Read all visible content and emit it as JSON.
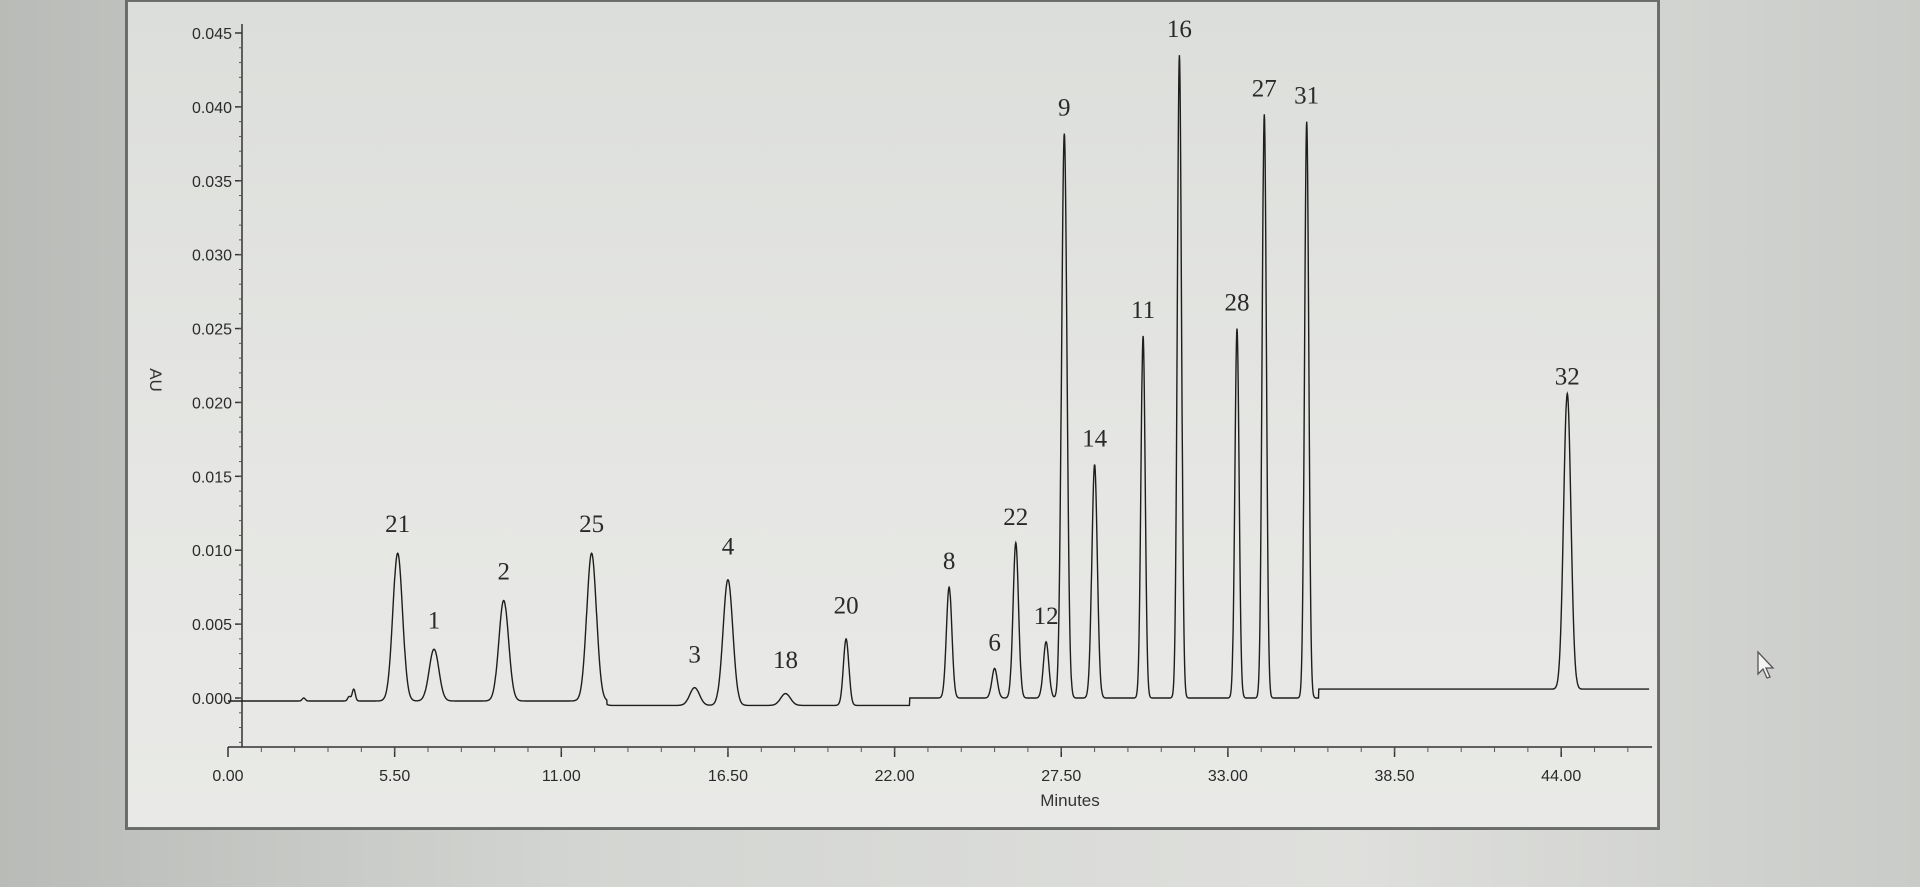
{
  "chart_data": {
    "type": "line",
    "title": "",
    "xlabel": "Minutes",
    "ylabel": "AU",
    "xlim": [
      0,
      47
    ],
    "ylim": [
      -0.0035,
      0.045
    ],
    "x_ticks": [
      "0.00",
      "5.50",
      "11.00",
      "16.50",
      "22.00",
      "27.50",
      "33.00",
      "38.50",
      "44.00"
    ],
    "x_tick_values": [
      0,
      5.5,
      11,
      16.5,
      22,
      27.5,
      33,
      38.5,
      44
    ],
    "y_ticks": [
      "0.000",
      "0.005",
      "0.010",
      "0.015",
      "0.020",
      "0.025",
      "0.030",
      "0.035",
      "0.040",
      "0.045"
    ],
    "y_tick_values": [
      0,
      0.005,
      0.01,
      0.015,
      0.02,
      0.025,
      0.03,
      0.035,
      0.04,
      0.045
    ],
    "grid": false,
    "line_color": "#1e1e1e",
    "peaks": [
      {
        "label": "21",
        "time": 5.6,
        "height": 0.01
      },
      {
        "label": "1",
        "time": 6.8,
        "height": 0.0035
      },
      {
        "label": "2",
        "time": 9.1,
        "height": 0.0068
      },
      {
        "label": "25",
        "time": 12.0,
        "height": 0.01
      },
      {
        "label": "3",
        "time": 15.4,
        "height": 0.0012
      },
      {
        "label": "4",
        "time": 16.5,
        "height": 0.0085
      },
      {
        "label": "18",
        "time": 18.4,
        "height": 0.0008
      },
      {
        "label": "20",
        "time": 20.4,
        "height": 0.0045
      },
      {
        "label": "8",
        "time": 23.8,
        "height": 0.0075
      },
      {
        "label": "6",
        "time": 25.3,
        "height": 0.002
      },
      {
        "label": "22",
        "time": 26.0,
        "height": 0.0105
      },
      {
        "label": "12",
        "time": 27.0,
        "height": 0.0038
      },
      {
        "label": "9",
        "time": 27.6,
        "height": 0.0382
      },
      {
        "label": "14",
        "time": 28.6,
        "height": 0.0158
      },
      {
        "label": "11",
        "time": 30.2,
        "height": 0.0245
      },
      {
        "label": "16",
        "time": 31.4,
        "height": 0.0435
      },
      {
        "label": "28",
        "time": 33.3,
        "height": 0.025
      },
      {
        "label": "27",
        "time": 34.2,
        "height": 0.0395
      },
      {
        "label": "31",
        "time": 35.6,
        "height": 0.039
      },
      {
        "label": "32",
        "time": 44.2,
        "height": 0.02
      }
    ]
  },
  "cursor_icon": "mouse-pointer-icon"
}
